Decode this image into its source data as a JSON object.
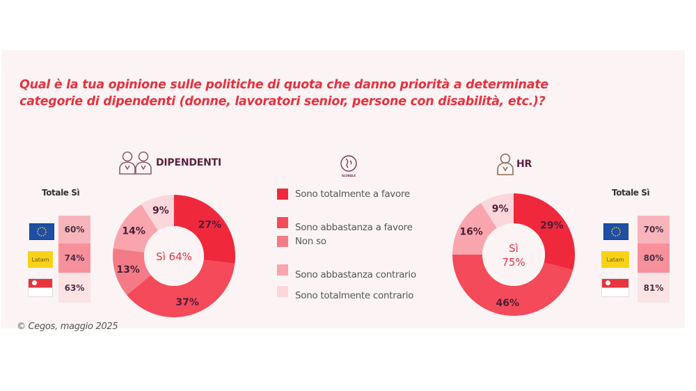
{
  "title_lines": [
    "Qual è la tua opinione sulle politiche di quota che danno priorità a determinate",
    "categorie di dipendenti (donne, lavoratori senior, persone con disabilità, etc.)?"
  ],
  "footer": "© Cegos, maggio 2025",
  "colors": {
    "title": "#e8313f",
    "panel_bg": "#fcf4f4",
    "segment_colors": [
      "#f0283c",
      "#f44a5a",
      "#f47b86",
      "#f8a5ad",
      "#fbd6da"
    ]
  },
  "globale_icon": {
    "icon": "globe-icon",
    "label": "GLOBALE"
  },
  "legend": [
    "Sono totalmente a favore",
    "Sono abbastanza a favore",
    "Non so",
    "Sono abbastanza contrario",
    "Sono totalmente contrario"
  ],
  "groups": {
    "dipendenti": {
      "label": "DIPENDENTI",
      "icon": "two-people-icon",
      "totale_label": "Totale Sì",
      "regions": [
        {
          "flag": "eu-flag",
          "name": "EU",
          "value": "60%"
        },
        {
          "flag": "latam-flag",
          "name": "Latam",
          "value": "74%"
        },
        {
          "flag": "singapore-flag",
          "name": "SG",
          "value": "63%"
        }
      ]
    },
    "hr": {
      "label": "HR",
      "icon": "person-icon",
      "totale_label": "Totale Sì",
      "regions": [
        {
          "flag": "eu-flag",
          "name": "EU",
          "value": "70%"
        },
        {
          "flag": "latam-flag",
          "name": "Latam",
          "value": "80%"
        },
        {
          "flag": "singapore-flag",
          "name": "SG",
          "value": "81%"
        }
      ]
    }
  },
  "chart_data": [
    {
      "type": "pie",
      "variant": "donut",
      "title": "DIPENDENTI",
      "center_label": "Sì 64%",
      "categories": [
        "Sono totalmente a favore",
        "Sono abbastanza a favore",
        "Non so",
        "Sono abbastanza contrario",
        "Sono totalmente contrario"
      ],
      "values": [
        27,
        37,
        13,
        14,
        9
      ],
      "labels": [
        "27%",
        "37%",
        "13%",
        "14%",
        "9%"
      ],
      "legend": "center"
    },
    {
      "type": "pie",
      "variant": "donut",
      "title": "HR",
      "center_label_lines": [
        "Sì",
        "75%"
      ],
      "categories": [
        "Sono totalmente a favore",
        "Sono abbastanza a favore",
        "Non so",
        "Sono abbastanza contrario",
        "Sono totalmente contrario"
      ],
      "values": [
        29,
        46,
        0,
        16,
        9
      ],
      "labels": [
        "29%",
        "46%",
        "",
        "16%",
        "9%"
      ],
      "legend": "center"
    }
  ]
}
